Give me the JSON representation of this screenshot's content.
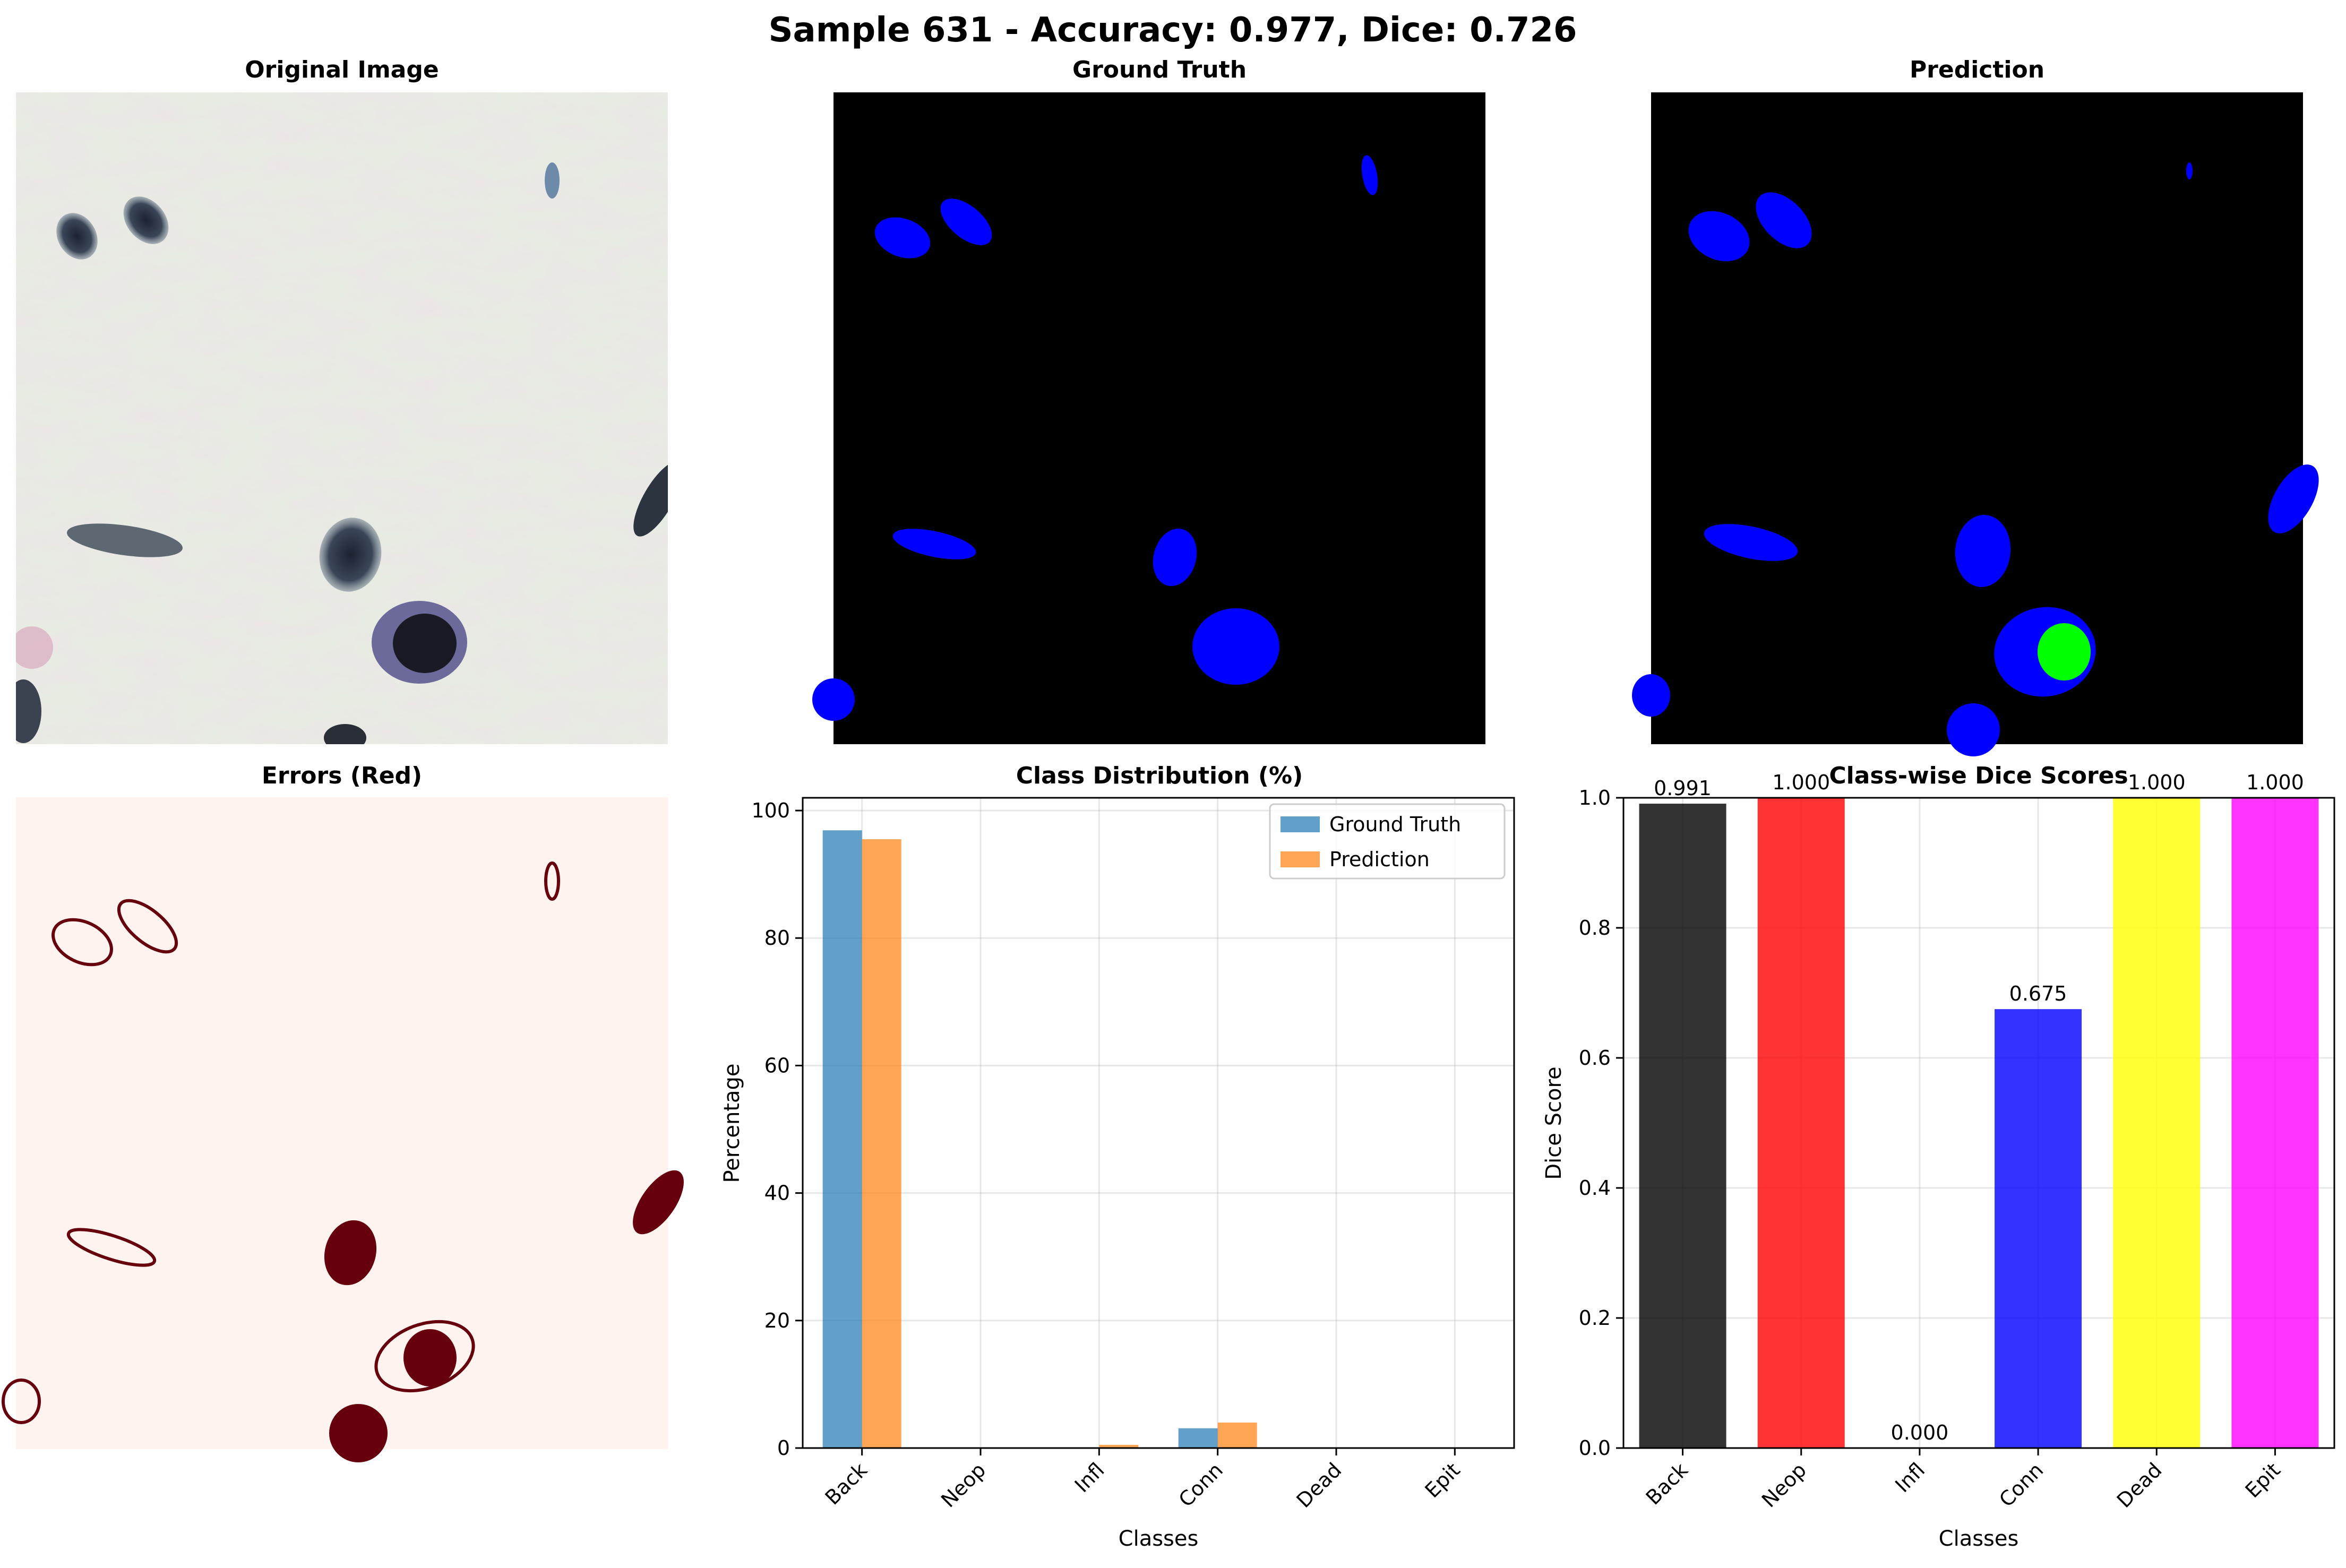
{
  "suptitle": "Sample 631 - Accuracy: 0.977, Dice: 0.726",
  "panels": {
    "original": "Original Image",
    "ground_truth": "Ground Truth",
    "prediction": "Prediction",
    "errors": "Errors (Red)"
  },
  "colors": {
    "gt_bar": "#1f77b4",
    "pred_bar": "#ff7f0e",
    "mask_bg": "#000000",
    "mask_blob": "#0000ff",
    "mask_green": "#00ff00",
    "error_bg": "#fff3ef",
    "error_fg": "#67000d"
  },
  "chart_data": [
    {
      "type": "bar",
      "title": "Class Distribution (%)",
      "xlabel": "Classes",
      "ylabel": "Percentage",
      "categories": [
        "Back",
        "Neop",
        "Infl",
        "Conn",
        "Dead",
        "Epit"
      ],
      "series": [
        {
          "name": "Ground Truth",
          "values": [
            96.9,
            0.0,
            0.0,
            3.1,
            0.0,
            0.0
          ]
        },
        {
          "name": "Prediction",
          "values": [
            95.5,
            0.0,
            0.5,
            4.0,
            0.0,
            0.0
          ]
        }
      ],
      "ylim": [
        0,
        102
      ],
      "yticks": [
        0,
        20,
        40,
        60,
        80,
        100
      ],
      "grid": true,
      "legend": "top-right"
    },
    {
      "type": "bar",
      "title": "Class-wise Dice Scores",
      "xlabel": "Classes",
      "ylabel": "Dice Score",
      "categories": [
        "Back",
        "Neop",
        "Infl",
        "Conn",
        "Dead",
        "Epit"
      ],
      "values": [
        0.991,
        1.0,
        0.0,
        0.675,
        1.0,
        1.0
      ],
      "value_labels": [
        "0.991",
        "1.000",
        "0.000",
        "0.675",
        "1.000",
        "1.000"
      ],
      "bar_colors": [
        "#000000",
        "#ff0000",
        "#00ff00",
        "#0000ff",
        "#ffff00",
        "#ff00ff"
      ],
      "ylim": [
        0,
        1
      ],
      "yticks": [
        "0.0",
        "0.2",
        "0.4",
        "0.6",
        "0.8",
        "1.0"
      ],
      "grid": true
    }
  ]
}
